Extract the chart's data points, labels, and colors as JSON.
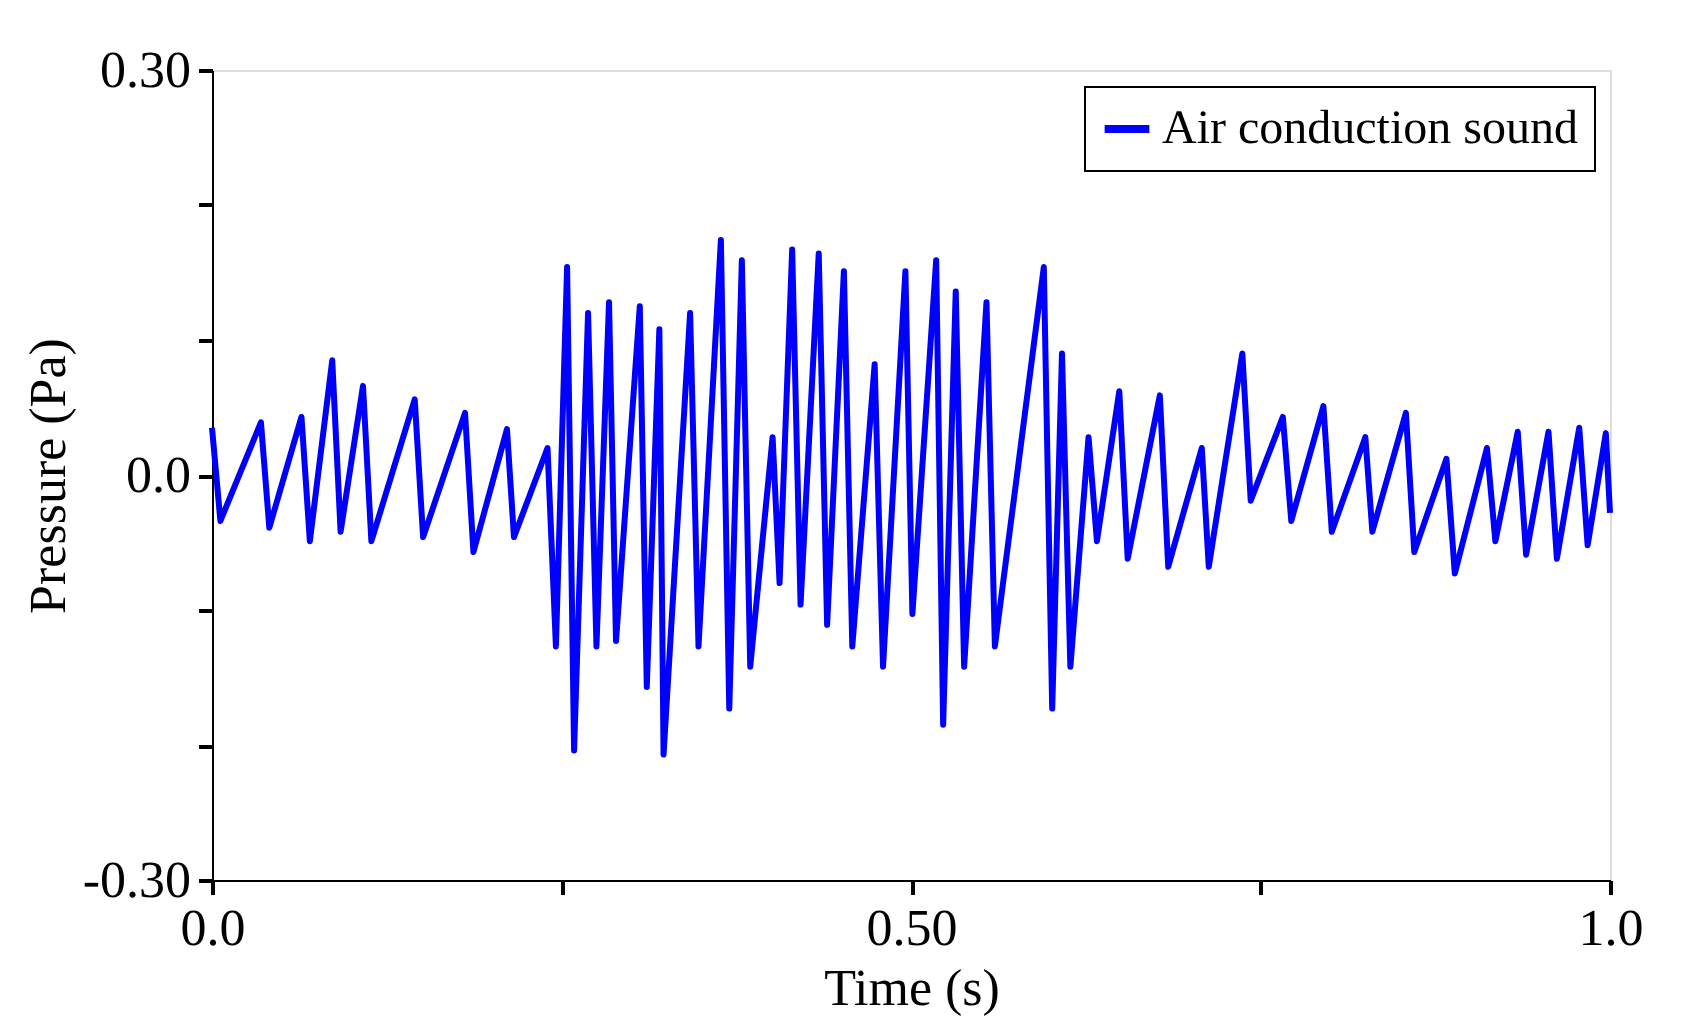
{
  "chart_data": {
    "type": "line",
    "xlabel": "Time (s)",
    "ylabel": "Pressure (Pa)",
    "xlim": [
      0,
      1
    ],
    "ylim": [
      -0.3,
      0.3
    ],
    "xticks": [
      {
        "value": 0,
        "label": "0.0"
      },
      {
        "value": 0.25,
        "label": null
      },
      {
        "value": 0.5,
        "label": "0.50"
      },
      {
        "value": 0.75,
        "label": null
      },
      {
        "value": 1,
        "label": "1.0"
      }
    ],
    "yticks": [
      {
        "value": -0.3,
        "label": "-0.30"
      },
      {
        "value": -0.2,
        "label": null
      },
      {
        "value": -0.1,
        "label": null
      },
      {
        "value": 0,
        "label": "0.0"
      },
      {
        "value": 0.1,
        "label": null
      },
      {
        "value": 0.2,
        "label": null
      },
      {
        "value": 0.3,
        "label": "0.30"
      }
    ],
    "grid": false,
    "legend": "top right",
    "marker": "none",
    "line_style": "solid",
    "x": [
      0.0,
      0.006,
      0.035,
      0.041,
      0.064,
      0.07,
      0.086,
      0.092,
      0.108,
      0.114,
      0.145,
      0.151,
      0.181,
      0.187,
      0.211,
      0.216,
      0.24,
      0.246,
      0.254,
      0.259,
      0.269,
      0.275,
      0.284,
      0.289,
      0.306,
      0.311,
      0.32,
      0.323,
      0.342,
      0.348,
      0.364,
      0.37,
      0.379,
      0.385,
      0.401,
      0.406,
      0.415,
      0.421,
      0.434,
      0.44,
      0.452,
      0.458,
      0.474,
      0.48,
      0.496,
      0.501,
      0.518,
      0.523,
      0.532,
      0.538,
      0.554,
      0.56,
      0.595,
      0.601,
      0.608,
      0.614,
      0.627,
      0.633,
      0.649,
      0.655,
      0.678,
      0.684,
      0.708,
      0.713,
      0.737,
      0.743,
      0.766,
      0.772,
      0.795,
      0.801,
      0.825,
      0.83,
      0.854,
      0.86,
      0.883,
      0.889,
      0.912,
      0.918,
      0.934,
      0.94,
      0.956,
      0.962,
      0.978,
      0.984,
      0.997,
      1.0
    ],
    "series": [
      {
        "name": "Air conduction sound",
        "color": "#0000ff",
        "values": [
          0.035,
          -0.034,
          0.039,
          -0.039,
          0.043,
          -0.049,
          0.085,
          -0.042,
          0.066,
          -0.049,
          0.056,
          -0.046,
          0.046,
          -0.057,
          0.034,
          -0.046,
          0.02,
          -0.127,
          0.154,
          -0.204,
          0.12,
          -0.127,
          0.128,
          -0.123,
          0.125,
          -0.157,
          0.108,
          -0.207,
          0.12,
          -0.127,
          0.174,
          -0.173,
          0.159,
          -0.142,
          0.028,
          -0.08,
          0.167,
          -0.096,
          0.164,
          -0.111,
          0.151,
          -0.127,
          0.082,
          -0.142,
          0.151,
          -0.103,
          0.159,
          -0.185,
          0.136,
          -0.142,
          0.128,
          -0.127,
          0.154,
          -0.173,
          0.09,
          -0.142,
          0.028,
          -0.049,
          0.062,
          -0.062,
          0.059,
          -0.068,
          0.02,
          -0.068,
          0.09,
          -0.019,
          0.043,
          -0.034,
          0.051,
          -0.042,
          0.028,
          -0.042,
          0.046,
          -0.057,
          0.012,
          -0.073,
          0.02,
          -0.049,
          0.032,
          -0.059,
          0.032,
          -0.062,
          0.035,
          -0.052,
          0.031,
          -0.028
        ]
      }
    ]
  }
}
